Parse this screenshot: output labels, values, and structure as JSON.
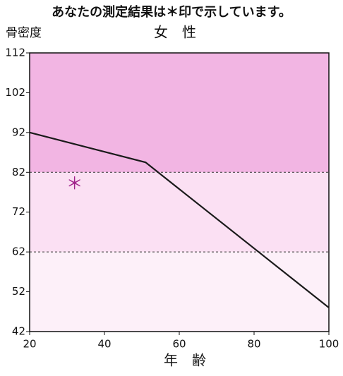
{
  "chart_data": {
    "type": "line",
    "title": "あなたの測定結果は＊印で示しています。",
    "ylabel": "骨密度",
    "subtitle": "女　性",
    "xlabel": "年　齢",
    "xlim": [
      20,
      100
    ],
    "xticks": [
      20,
      40,
      60,
      80,
      100
    ],
    "ylim": [
      42,
      112
    ],
    "yticks": [
      42,
      52,
      62,
      72,
      82,
      92,
      102,
      112
    ],
    "bands": [
      {
        "from": 82,
        "to": 112,
        "color": "#f2b5e3"
      },
      {
        "from": 62,
        "to": 82,
        "color": "#fbe0f3"
      },
      {
        "from": 42,
        "to": 62,
        "color": "#fdf0f9"
      }
    ],
    "series": [
      {
        "x": [
          20,
          51,
          100
        ],
        "values": [
          92,
          84.5,
          48
        ],
        "color": "#1a1a1a"
      }
    ],
    "marker": {
      "x": 32,
      "y": 79,
      "symbol": "＊",
      "color": "#a0208a"
    }
  }
}
